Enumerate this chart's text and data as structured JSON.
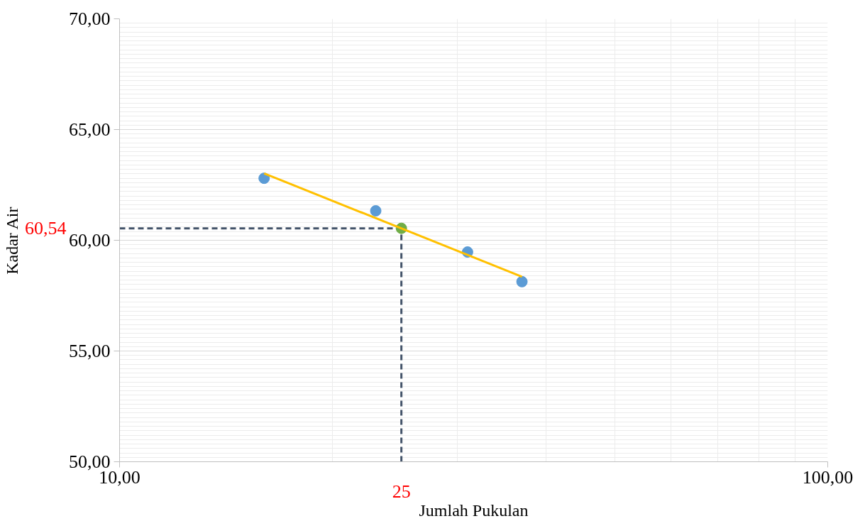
{
  "chart_data": {
    "type": "scatter",
    "xlabel": "Jumlah Pukulan",
    "ylabel": "Kadar Air",
    "log": "x",
    "xlim": [
      10,
      100
    ],
    "xticks": [
      {
        "value": 10,
        "label": "10,00"
      },
      {
        "value": 100,
        "label": "100,00"
      }
    ],
    "ylim": [
      50,
      70
    ],
    "yticks": [
      {
        "value": 50,
        "label": "50,00"
      },
      {
        "value": 55,
        "label": "55,00"
      },
      {
        "value": 60,
        "label": "60,00"
      },
      {
        "value": 65,
        "label": "65,00"
      },
      {
        "value": 70,
        "label": "70,00"
      }
    ],
    "grid": true,
    "series": [
      {
        "marker": "circle",
        "color": "#5b9bd5",
        "x": [
          16,
          23,
          31,
          37
        ],
        "values": [
          62.8,
          61.33,
          59.47,
          58.13
        ]
      },
      {
        "marker": "circle",
        "color": "#70ad47",
        "x": [
          25
        ],
        "values": [
          60.54
        ]
      },
      {
        "type": "line",
        "color": "#ffc000",
        "x": [
          16,
          37
        ],
        "values": [
          63.02,
          58.35
        ]
      }
    ],
    "ref_lines": [
      {
        "axis": "y",
        "value": 60.54,
        "label": "60,54",
        "color": "#44546a",
        "line_style": "dashed"
      },
      {
        "axis": "x",
        "value": 25,
        "label": "25",
        "color": "#44546a",
        "line_style": "dashed"
      }
    ]
  }
}
